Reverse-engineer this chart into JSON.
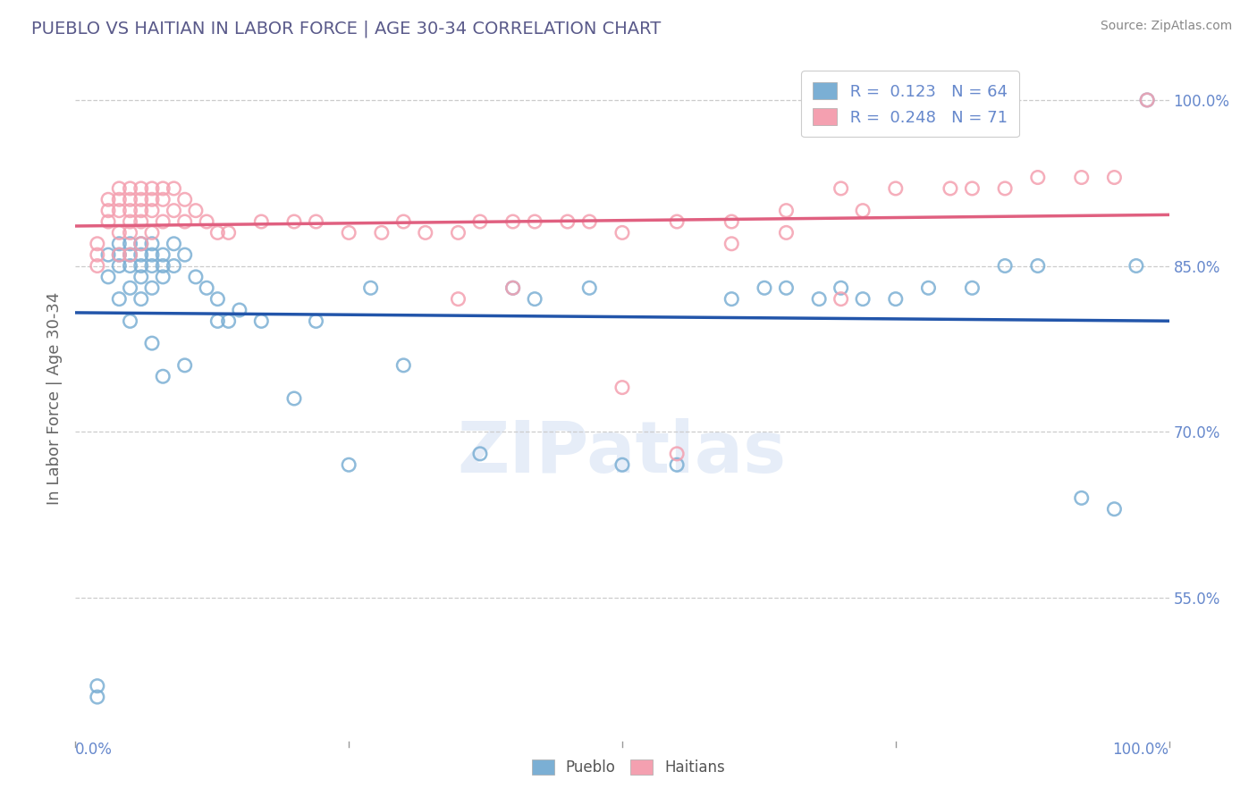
{
  "title": "PUEBLO VS HAITIAN IN LABOR FORCE | AGE 30-34 CORRELATION CHART",
  "source": "Source: ZipAtlas.com",
  "ylabel": "In Labor Force | Age 30-34",
  "watermark": "ZIPatlas",
  "pueblo_R": 0.123,
  "pueblo_N": 64,
  "haitian_R": 0.248,
  "haitian_N": 71,
  "pueblo_color": "#7bafd4",
  "haitian_color": "#f4a0b0",
  "pueblo_line_color": "#2255aa",
  "haitian_line_color": "#e06080",
  "yticks": [
    55.0,
    70.0,
    85.0,
    100.0
  ],
  "xlim": [
    0.0,
    1.0
  ],
  "ylim": [
    0.42,
    1.04
  ],
  "pueblo_x": [
    0.02,
    0.02,
    0.03,
    0.03,
    0.04,
    0.04,
    0.04,
    0.04,
    0.05,
    0.05,
    0.05,
    0.05,
    0.05,
    0.06,
    0.06,
    0.06,
    0.06,
    0.06,
    0.07,
    0.07,
    0.07,
    0.07,
    0.07,
    0.08,
    0.08,
    0.08,
    0.08,
    0.09,
    0.09,
    0.1,
    0.1,
    0.11,
    0.12,
    0.13,
    0.13,
    0.14,
    0.15,
    0.17,
    0.2,
    0.22,
    0.25,
    0.27,
    0.3,
    0.37,
    0.4,
    0.42,
    0.47,
    0.5,
    0.55,
    0.6,
    0.63,
    0.65,
    0.68,
    0.7,
    0.72,
    0.75,
    0.78,
    0.82,
    0.85,
    0.88,
    0.92,
    0.95,
    0.97,
    0.98
  ],
  "pueblo_y": [
    0.47,
    0.46,
    0.86,
    0.84,
    0.87,
    0.86,
    0.85,
    0.82,
    0.87,
    0.86,
    0.85,
    0.83,
    0.8,
    0.87,
    0.86,
    0.85,
    0.84,
    0.82,
    0.87,
    0.86,
    0.85,
    0.83,
    0.78,
    0.86,
    0.85,
    0.84,
    0.75,
    0.87,
    0.85,
    0.86,
    0.76,
    0.84,
    0.83,
    0.82,
    0.8,
    0.8,
    0.81,
    0.8,
    0.73,
    0.8,
    0.67,
    0.83,
    0.76,
    0.68,
    0.83,
    0.82,
    0.83,
    0.67,
    0.67,
    0.82,
    0.83,
    0.83,
    0.82,
    0.83,
    0.82,
    0.82,
    0.83,
    0.83,
    0.85,
    0.85,
    0.64,
    0.63,
    0.85,
    1.0
  ],
  "haitian_x": [
    0.02,
    0.02,
    0.02,
    0.03,
    0.03,
    0.03,
    0.04,
    0.04,
    0.04,
    0.04,
    0.04,
    0.05,
    0.05,
    0.05,
    0.05,
    0.05,
    0.05,
    0.06,
    0.06,
    0.06,
    0.06,
    0.06,
    0.07,
    0.07,
    0.07,
    0.07,
    0.08,
    0.08,
    0.08,
    0.09,
    0.09,
    0.1,
    0.1,
    0.11,
    0.12,
    0.13,
    0.14,
    0.17,
    0.2,
    0.22,
    0.25,
    0.28,
    0.3,
    0.32,
    0.35,
    0.37,
    0.4,
    0.42,
    0.45,
    0.47,
    0.5,
    0.55,
    0.6,
    0.65,
    0.7,
    0.72,
    0.75,
    0.8,
    0.82,
    0.85,
    0.88,
    0.92,
    0.95,
    0.98,
    0.5,
    0.55,
    0.6,
    0.65,
    0.7,
    0.35,
    0.4
  ],
  "haitian_y": [
    0.87,
    0.86,
    0.85,
    0.91,
    0.9,
    0.89,
    0.92,
    0.91,
    0.9,
    0.88,
    0.86,
    0.92,
    0.91,
    0.9,
    0.89,
    0.88,
    0.86,
    0.92,
    0.91,
    0.9,
    0.89,
    0.87,
    0.92,
    0.91,
    0.9,
    0.88,
    0.92,
    0.91,
    0.89,
    0.92,
    0.9,
    0.91,
    0.89,
    0.9,
    0.89,
    0.88,
    0.88,
    0.89,
    0.89,
    0.89,
    0.88,
    0.88,
    0.89,
    0.88,
    0.88,
    0.89,
    0.89,
    0.89,
    0.89,
    0.89,
    0.88,
    0.89,
    0.89,
    0.9,
    0.92,
    0.9,
    0.92,
    0.92,
    0.92,
    0.92,
    0.93,
    0.93,
    0.93,
    1.0,
    0.74,
    0.68,
    0.87,
    0.88,
    0.82,
    0.82,
    0.83
  ],
  "background_color": "#ffffff",
  "grid_color": "#cccccc",
  "title_color": "#5a5a8a",
  "tick_label_color": "#6688cc"
}
